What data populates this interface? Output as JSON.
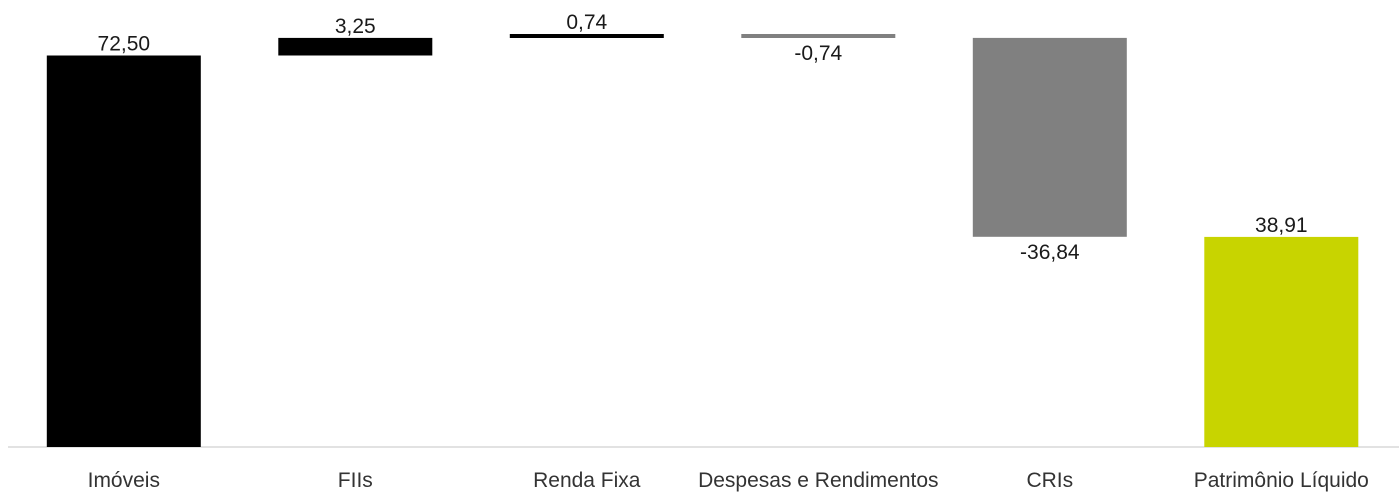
{
  "chart_data": {
    "type": "waterfall",
    "categories": [
      "Imóveis",
      "FIIs",
      "Renda Fixa",
      "Despesas e Rendimentos",
      "CRIs",
      "Patrimônio Líquido"
    ],
    "values": [
      72.5,
      3.25,
      0.74,
      -0.74,
      -36.84,
      38.91
    ],
    "value_labels": [
      "72,50",
      "3,25",
      "0,74",
      "-0,74",
      "-36,84",
      "38,91"
    ],
    "kinds": [
      "total",
      "delta",
      "delta",
      "delta",
      "delta",
      "total"
    ],
    "colors": [
      "#000000",
      "#000000",
      "#000000",
      "#808080",
      "#808080",
      "#c8d400"
    ],
    "title": "",
    "xlabel": "",
    "ylabel": "",
    "grid": false,
    "legend": "none"
  }
}
